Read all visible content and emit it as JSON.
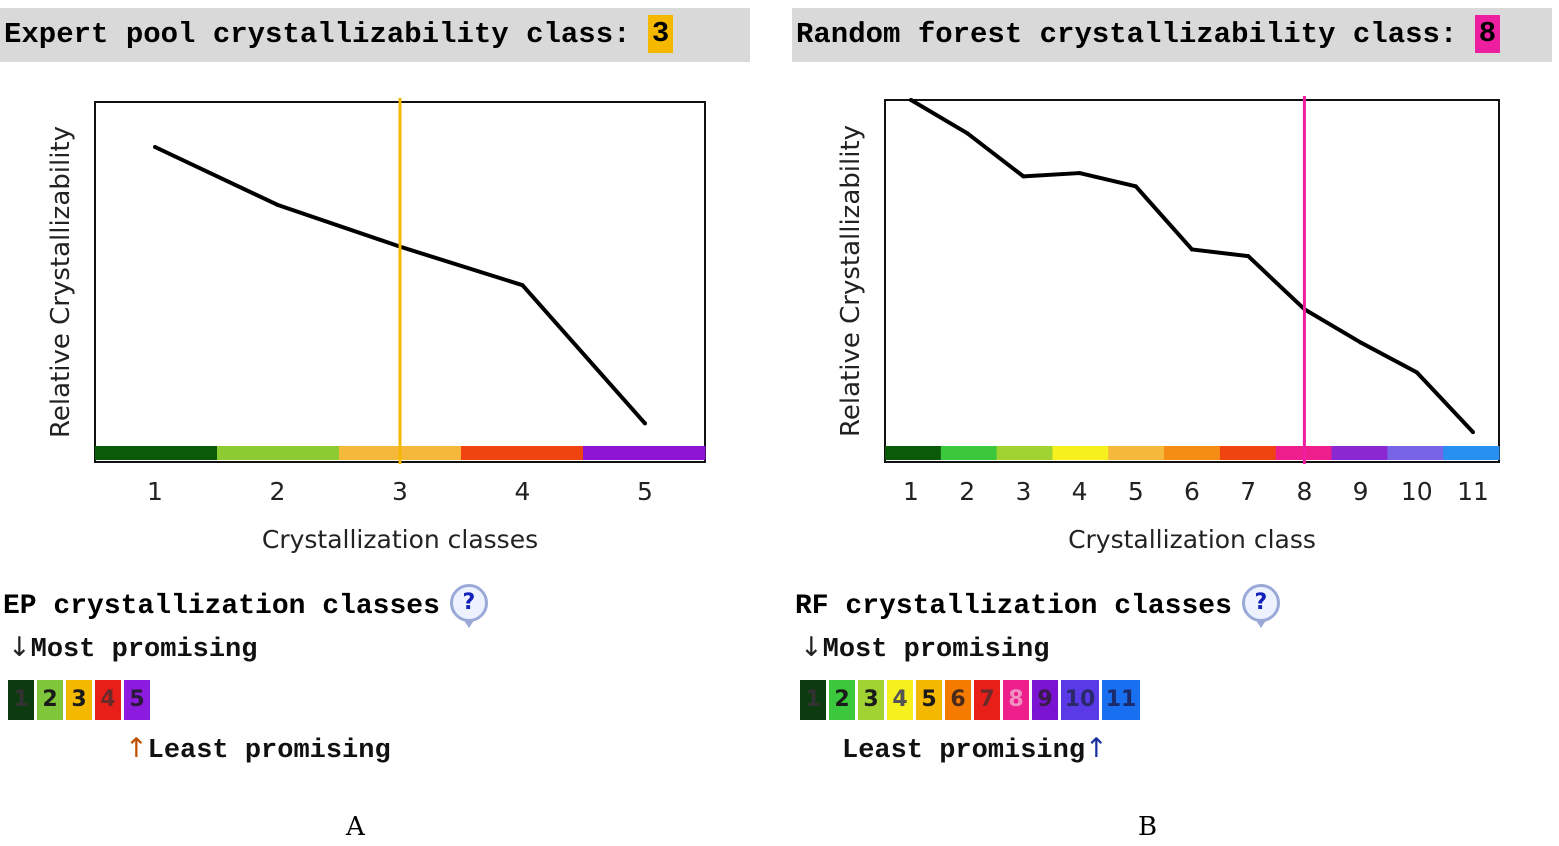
{
  "panels": {
    "a": {
      "class_label": "Expert pool crystallizability class:",
      "class_value": "3",
      "section_title": "EP crystallization classes",
      "most_promising": "Most promising",
      "least_promising": "Least promising",
      "caption": "A",
      "help_glyph": "?",
      "arrow_down": "↓",
      "arrow_up": "↑"
    },
    "b": {
      "class_label": "Random forest crystallizability class:",
      "class_value": "8",
      "section_title": "RF crystallization classes",
      "most_promising": "Most promising",
      "least_promising": "Least promising",
      "caption": "B",
      "help_glyph": "?",
      "arrow_down": "↓",
      "arrow_up": "↑"
    }
  },
  "icons": {
    "help": "help-bubble-icon",
    "down": "down-arrow-icon",
    "up": "up-arrow-icon"
  },
  "chart_data": [
    {
      "type": "line",
      "title": "",
      "xlabel": "Crystallization classes",
      "ylabel": "Relative Crystallizability",
      "x": [
        1,
        2,
        3,
        4,
        5
      ],
      "series": [
        {
          "values": [
            0.86,
            0.68,
            0.55,
            0.43,
            0.0
          ]
        }
      ],
      "ylim": [
        -0.12,
        1.0
      ],
      "marker_class": 3,
      "marker_color": "#f5b800",
      "class_colors": [
        "#0a5a0a",
        "#8ccb32",
        "#f5b83a",
        "#f04410",
        "#8c14d2"
      ],
      "grid": false
    },
    {
      "type": "line",
      "title": "",
      "xlabel": "Crystallization class",
      "ylabel": "Relative Crystallizability",
      "x": [
        1,
        2,
        3,
        4,
        5,
        6,
        7,
        8,
        9,
        10,
        11
      ],
      "series": [
        {
          "values": [
            1.0,
            0.9,
            0.77,
            0.78,
            0.74,
            0.55,
            0.53,
            0.37,
            0.27,
            0.18,
            0.0
          ]
        }
      ],
      "ylim": [
        -0.09,
        1.0
      ],
      "marker_class": 8,
      "marker_color": "#ee1ea0",
      "class_colors": [
        "#0a5a0a",
        "#3cc83c",
        "#a0d232",
        "#f5f01e",
        "#f5b83a",
        "#f58c14",
        "#f04410",
        "#ee1e8c",
        "#8c28d2",
        "#7864e6",
        "#2890f0"
      ],
      "grid": false
    }
  ],
  "swatches": {
    "a": [
      {
        "label": "1",
        "bg": "#0e3a12",
        "fg": "#333333"
      },
      {
        "label": "2",
        "bg": "#7fc63a",
        "fg": "#1a1a1a"
      },
      {
        "label": "3",
        "bg": "#f5b800",
        "fg": "#1a1a1a"
      },
      {
        "label": "4",
        "bg": "#e81f18",
        "fg": "#6a2a2a"
      },
      {
        "label": "5",
        "bg": "#8c1adf",
        "fg": "#2a1a3a"
      }
    ],
    "b": [
      {
        "label": "1",
        "bg": "#0e3a12",
        "fg": "#333333"
      },
      {
        "label": "2",
        "bg": "#3cc83c",
        "fg": "#1a1a1a"
      },
      {
        "label": "3",
        "bg": "#a0d232",
        "fg": "#1a1a1a"
      },
      {
        "label": "4",
        "bg": "#f5f01e",
        "fg": "#555555"
      },
      {
        "label": "5",
        "bg": "#f5b800",
        "fg": "#1a1a1a"
      },
      {
        "label": "6",
        "bg": "#f57a00",
        "fg": "#4a2a1a"
      },
      {
        "label": "7",
        "bg": "#e81f18",
        "fg": "#6a2a2a"
      },
      {
        "label": "8",
        "bg": "#ee1e8c",
        "fg": "#f090c0"
      },
      {
        "label": "9",
        "bg": "#7a14d2",
        "fg": "#3a1a4a"
      },
      {
        "label": "10",
        "bg": "#5a3ae6",
        "fg": "#2a2a6a"
      },
      {
        "label": "11",
        "bg": "#1870f0",
        "fg": "#1a2a6a"
      }
    ]
  }
}
